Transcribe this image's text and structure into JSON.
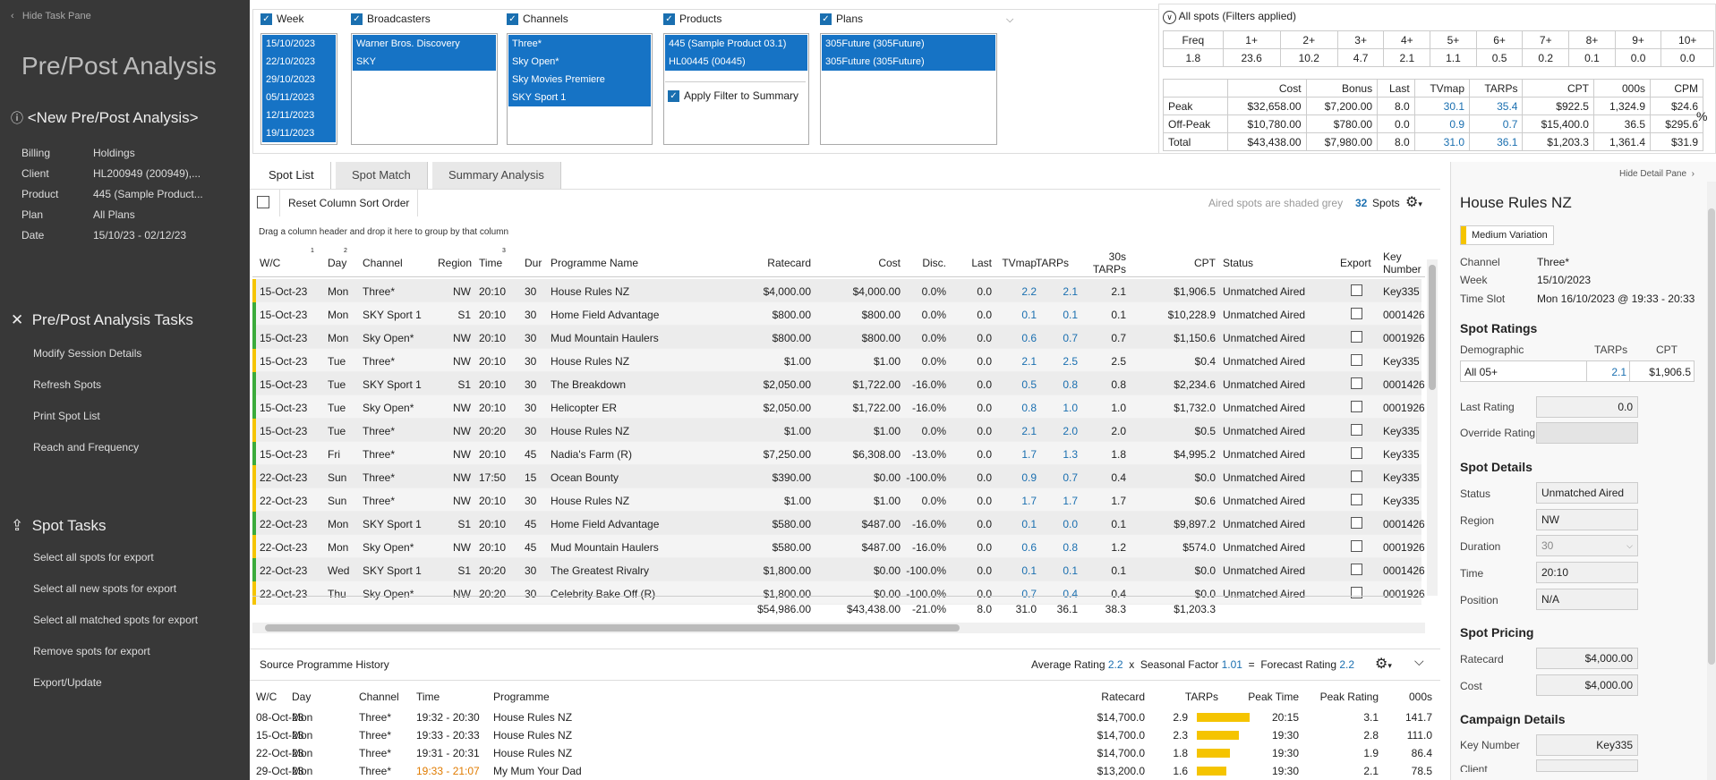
{
  "left": {
    "hide_label": "Hide Task Pane",
    "title": "Pre/Post Analysis",
    "analysis_name": "<New Pre/Post Analysis>",
    "details": [
      {
        "k": "Billing",
        "v": "Holdings"
      },
      {
        "k": "Client",
        "v": "HL200949 (200949),..."
      },
      {
        "k": "Product",
        "v": "445 (Sample Product..."
      },
      {
        "k": "Plan",
        "v": "All Plans"
      },
      {
        "k": "Date",
        "v": "15/10/23 - 02/12/23"
      }
    ],
    "tasks_title": "Pre/Post Analysis Tasks",
    "tasks": [
      "Modify Session Details",
      "Refresh Spots",
      "Print Spot List",
      "Reach and Frequency"
    ],
    "spot_tasks_title": "Spot Tasks",
    "spot_tasks": [
      "Select all spots for export",
      "Select all new spots for export",
      "Select all matched spots for export",
      "Remove spots for export",
      "Export/Update"
    ]
  },
  "filters": {
    "week": {
      "label": "Week",
      "items": [
        "15/10/2023",
        "22/10/2023",
        "29/10/2023",
        "05/11/2023",
        "12/11/2023",
        "19/11/2023"
      ]
    },
    "broadcasters": {
      "label": "Broadcasters",
      "items": [
        "Warner Bros. Discovery",
        "SKY"
      ]
    },
    "channels": {
      "label": "Channels",
      "items": [
        "Three*",
        "Sky Open*",
        "Sky Movies Premiere",
        "SKY Sport 1"
      ]
    },
    "products": {
      "label": "Products",
      "items": [
        "445 (Sample Product 03.1)",
        "HL00445 (00445)"
      ],
      "apply": "Apply Filter to Summary"
    },
    "plans": {
      "label": "Plans",
      "items": [
        "305Future (305Future)",
        "305Future (305Future)"
      ]
    }
  },
  "summary": {
    "title": "All spots (Filters applied)",
    "freq_headers": [
      "Freq",
      "1+",
      "2+",
      "3+",
      "4+",
      "5+",
      "6+",
      "7+",
      "8+",
      "9+",
      "10+"
    ],
    "freq_values": [
      "1.8",
      "23.6",
      "10.2",
      "4.7",
      "2.1",
      "1.1",
      "0.5",
      "0.2",
      "0.1",
      "0.0",
      "0.0"
    ],
    "cost_headers": [
      "",
      "Cost",
      "Bonus",
      "Last",
      "TVmap",
      "TARPs",
      "CPT",
      "000s",
      "CPM"
    ],
    "cost_rows": [
      [
        "Peak",
        "$32,658.00",
        "$7,200.00",
        "8.0",
        "30.1",
        "35.4",
        "$922.5",
        "1,324.9",
        "$24.6"
      ],
      [
        "Off-Peak",
        "$10,780.00",
        "$780.00",
        "0.0",
        "0.9",
        "0.7",
        "$15,400.0",
        "36.5",
        "$295.6"
      ],
      [
        "Total",
        "$43,438.00",
        "$7,980.00",
        "8.0",
        "31.0",
        "36.1",
        "$1,203.3",
        "1,361.4",
        "$31.9"
      ]
    ],
    "pct": "%"
  },
  "tabs": [
    "Spot List",
    "Spot Match",
    "Summary Analysis"
  ],
  "toolbar": {
    "reset": "Reset Column Sort Order",
    "aired_note": "Aired spots are shaded grey",
    "count": "32",
    "spots": "Spots",
    "group_hint": "Drag a column header and drop it here to group by that column"
  },
  "grid": {
    "headers": [
      "W/C",
      "Day",
      "Channel",
      "Region",
      "Time",
      "Dur",
      "Programme Name",
      "Ratecard",
      "Cost",
      "Disc.",
      "Last",
      "TVmap",
      "TARPs",
      "30s",
      "TARPs",
      "CPT",
      "Status",
      "Export",
      "Key",
      "Number"
    ],
    "sort_marks": [
      "1",
      "2",
      "3"
    ],
    "rows": [
      [
        "15-Oct-23",
        "Mon",
        "Three*",
        "NW",
        "20:10",
        "30",
        "House Rules NZ",
        "$4,000.00",
        "$4,000.00",
        "0.0%",
        "0.0",
        "2.2",
        "2.1",
        "2.1",
        "$1,906.5",
        "Unmatched Aired",
        "Key335",
        "y"
      ],
      [
        "15-Oct-23",
        "Mon",
        "SKY Sport 1",
        "S1",
        "20:10",
        "30",
        "Home Field Advantage",
        "$800.00",
        "$800.00",
        "0.0%",
        "0.0",
        "0.1",
        "0.1",
        "0.1",
        "$10,228.9",
        "Unmatched Aired",
        "0001426",
        "g"
      ],
      [
        "15-Oct-23",
        "Mon",
        "Sky Open*",
        "NW",
        "20:10",
        "30",
        "Mud Mountain Haulers",
        "$800.00",
        "$800.00",
        "0.0%",
        "0.0",
        "0.6",
        "0.7",
        "0.7",
        "$1,150.6",
        "Unmatched Aired",
        "0001926",
        "g"
      ],
      [
        "15-Oct-23",
        "Tue",
        "Three*",
        "NW",
        "20:10",
        "30",
        "House Rules NZ",
        "$1.00",
        "$1.00",
        "0.0%",
        "0.0",
        "2.1",
        "2.5",
        "2.5",
        "$0.4",
        "Unmatched Aired",
        "Key335",
        "y"
      ],
      [
        "15-Oct-23",
        "Tue",
        "SKY Sport 1",
        "S1",
        "20:10",
        "30",
        "The Breakdown",
        "$2,050.00",
        "$1,722.00",
        "-16.0%",
        "0.0",
        "0.5",
        "0.8",
        "0.8",
        "$2,234.6",
        "Unmatched Aired",
        "0001426",
        "g"
      ],
      [
        "15-Oct-23",
        "Tue",
        "Sky Open*",
        "NW",
        "20:10",
        "30",
        "Helicopter ER",
        "$2,050.00",
        "$1,722.00",
        "-16.0%",
        "0.0",
        "0.8",
        "1.0",
        "1.0",
        "$1,732.0",
        "Unmatched Aired",
        "0001926",
        "g"
      ],
      [
        "15-Oct-23",
        "Tue",
        "Three*",
        "NW",
        "20:20",
        "30",
        "House Rules NZ",
        "$1.00",
        "$1.00",
        "0.0%",
        "0.0",
        "2.1",
        "2.0",
        "2.0",
        "$0.5",
        "Unmatched Aired",
        "Key335",
        "y"
      ],
      [
        "15-Oct-23",
        "Fri",
        "Three*",
        "NW",
        "20:10",
        "45",
        "Nadia's Farm (R)",
        "$7,250.00",
        "$6,308.00",
        "-13.0%",
        "0.0",
        "1.7",
        "1.3",
        "1.8",
        "$4,995.2",
        "Unmatched Aired",
        "Key335",
        "g"
      ],
      [
        "22-Oct-23",
        "Sun",
        "Three*",
        "NW",
        "17:50",
        "15",
        "Ocean Bounty",
        "$390.00",
        "$0.00",
        "-100.0%",
        "0.0",
        "0.9",
        "0.7",
        "0.4",
        "$0.0",
        "Unmatched Aired",
        "Key335",
        "y"
      ],
      [
        "22-Oct-23",
        "Sun",
        "Three*",
        "NW",
        "20:10",
        "30",
        "House Rules NZ",
        "$1.00",
        "$1.00",
        "0.0%",
        "0.0",
        "1.7",
        "1.7",
        "1.7",
        "$0.6",
        "Unmatched Aired",
        "Key335",
        "y"
      ],
      [
        "22-Oct-23",
        "Mon",
        "SKY Sport 1",
        "S1",
        "20:10",
        "45",
        "Home Field Advantage",
        "$580.00",
        "$487.00",
        "-16.0%",
        "0.0",
        "0.1",
        "0.0",
        "0.1",
        "$9,897.2",
        "Unmatched Aired",
        "0001426",
        "g"
      ],
      [
        "22-Oct-23",
        "Mon",
        "Sky Open*",
        "NW",
        "20:10",
        "45",
        "Mud Mountain Haulers",
        "$580.00",
        "$487.00",
        "-16.0%",
        "0.0",
        "0.6",
        "0.8",
        "1.2",
        "$574.0",
        "Unmatched Aired",
        "0001926",
        "y"
      ],
      [
        "22-Oct-23",
        "Wed",
        "SKY Sport 1",
        "S1",
        "20:20",
        "30",
        "The Greatest Rivalry",
        "$1,800.00",
        "$0.00",
        "-100.0%",
        "0.0",
        "0.1",
        "0.1",
        "0.1",
        "$0.0",
        "Unmatched Aired",
        "0001426",
        "g"
      ],
      [
        "22-Oct-23",
        "Thu",
        "Sky Open*",
        "NW",
        "20:20",
        "30",
        "Celebrity Bake Off (R)",
        "$1,800.00",
        "$0.00",
        "-100.0%",
        "0.0",
        "0.7",
        "0.4",
        "0.4",
        "$0.0",
        "Unmatched Aired",
        "0001926",
        "y"
      ]
    ],
    "totals": [
      "$54,986.00",
      "$43,438.00",
      "-21.0%",
      "8.0",
      "31.0",
      "36.1",
      "38.3",
      "$1,203.3"
    ]
  },
  "history": {
    "title": "Source Programme History",
    "avg_label": "Average Rating",
    "avg": "2.2",
    "x": "x",
    "seasonal_label": "Seasonal Factor",
    "seasonal": "1.01",
    "eq": "=",
    "forecast_label": "Forecast Rating",
    "forecast": "2.2",
    "headers": [
      "W/C",
      "Day",
      "Channel",
      "Time",
      "Programme",
      "Ratecard",
      "TARPs",
      "Peak Time",
      "Peak Rating",
      "000s"
    ],
    "rows": [
      [
        "08-Oct-23",
        "Mon",
        "Three*",
        "19:32 - 20:30",
        "House Rules NZ",
        "$14,700.0",
        "2.9",
        "20:15",
        "3.1",
        "141.7"
      ],
      [
        "15-Oct-23",
        "Mon",
        "Three*",
        "19:33 - 20:33",
        "House Rules NZ",
        "$14,700.0",
        "2.3",
        "19:30",
        "2.8",
        "111.0"
      ],
      [
        "22-Oct-23",
        "Mon",
        "Three*",
        "19:31 - 20:31",
        "House Rules NZ",
        "$14,700.0",
        "1.8",
        "19:30",
        "1.9",
        "86.4"
      ],
      [
        "29-Oct-23",
        "Mon",
        "Three*",
        "19:33 - 21:07",
        "My Mum Your Dad",
        "$13,200.0",
        "1.6",
        "19:30",
        "2.1",
        "78.5"
      ]
    ]
  },
  "detail": {
    "hide": "Hide Detail Pane",
    "title": "House Rules NZ",
    "variation": "Medium Variation",
    "channel_l": "Channel",
    "channel": "Three*",
    "week_l": "Week",
    "week": "15/10/2023",
    "slot_l": "Time Slot",
    "slot": "Mon 16/10/2023 @ 19:33 - 20:33",
    "ratings_title": "Spot Ratings",
    "demo_l": "Demographic",
    "tarps_l": "TARPs",
    "cpt_l": "CPT",
    "demo": "All 05+",
    "demo_tarps": "2.1",
    "demo_cpt": "$1,906.5",
    "last_l": "Last Rating",
    "last": "0.0",
    "override_l": "Override Rating",
    "details_title": "Spot Details",
    "status_l": "Status",
    "status": "Unmatched Aired",
    "region_l": "Region",
    "region": "NW",
    "duration_l": "Duration",
    "duration": "30",
    "time_l": "Time",
    "time": "20:10",
    "position_l": "Position",
    "position": "N/A",
    "pricing_title": "Spot Pricing",
    "ratecard_l": "Ratecard",
    "ratecard": "$4,000.00",
    "cost_l": "Cost",
    "cost": "$4,000.00",
    "campaign_title": "Campaign Details",
    "key_l": "Key Number",
    "key": "Key335",
    "client_l": "Client"
  }
}
